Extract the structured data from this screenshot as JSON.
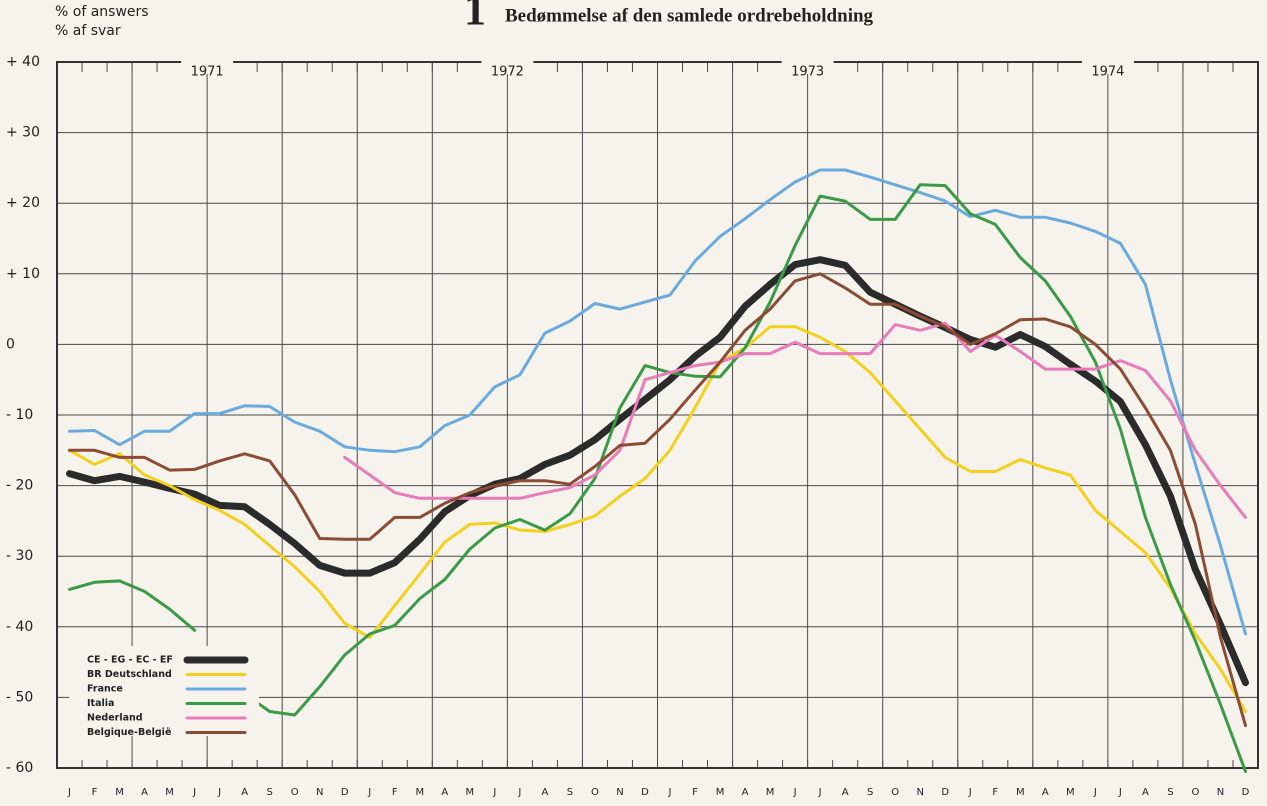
{
  "chart_data": {
    "type": "line",
    "figure_number": "1",
    "title": "Bedømmelse af den samlede ordrebeholdning",
    "ylabel": "% of answers",
    "ylabel_da": "% af svar",
    "years": [
      "1971",
      "1972",
      "1973",
      "1974"
    ],
    "categories": [
      "J",
      "F",
      "M",
      "A",
      "M",
      "J",
      "J",
      "A",
      "S",
      "O",
      "N",
      "D",
      "J",
      "F",
      "M",
      "A",
      "M",
      "J",
      "J",
      "A",
      "S",
      "O",
      "N",
      "D",
      "J",
      "F",
      "M",
      "A",
      "M",
      "J",
      "J",
      "A",
      "S",
      "O",
      "N",
      "D",
      "J",
      "F",
      "M",
      "A",
      "M",
      "J",
      "J",
      "A",
      "S",
      "O",
      "N",
      "D"
    ],
    "ylim": [
      -60,
      40
    ],
    "yticks": [
      {
        "value": 40,
        "label": "+ 40"
      },
      {
        "value": 30,
        "label": "+ 30"
      },
      {
        "value": 20,
        "label": "+ 20"
      },
      {
        "value": 10,
        "label": "+ 10"
      },
      0,
      {
        "value": -10,
        "label": "- 10"
      },
      {
        "value": -20,
        "label": "- 20"
      },
      {
        "value": -30,
        "label": "- 30"
      },
      {
        "value": -40,
        "label": "- 40"
      },
      {
        "value": -50,
        "label": "- 50"
      },
      {
        "value": -60,
        "label": "- 60"
      }
    ],
    "grid": true,
    "legend": "lower-left",
    "series": [
      {
        "name": "CE - EG - EC - EF",
        "color": "#2b2b2b",
        "width": 7,
        "values": [
          -18.3,
          -19.3,
          -18.7,
          -19.5,
          -20.4,
          -21.2,
          -22.8,
          -23,
          -25.5,
          -28.2,
          -31.3,
          -32.4,
          -32.4,
          -30.9,
          -27.6,
          -23.7,
          -21.4,
          -19.8,
          -19,
          -17,
          -15.7,
          -13.5,
          -10.6,
          -7.8,
          -5,
          -1.7,
          1,
          5.4,
          8.5,
          11.3,
          12,
          11.2,
          7.4,
          5.7,
          4,
          2.4,
          0.7,
          -0.4,
          1.4,
          -0.3,
          -2.8,
          -5.2,
          -8.1,
          -14.2,
          -21.5,
          -31.9,
          -39.7,
          -47.9
        ]
      },
      {
        "name": "BR Deutschland",
        "color": "#f4d01e",
        "width": 3,
        "values": [
          -15,
          -17,
          -15.5,
          -18.5,
          -20,
          -22,
          -23.5,
          -25.5,
          -28.5,
          -31.5,
          -35,
          -39.5,
          -41.5,
          -37,
          -32.5,
          -28,
          -25.5,
          -25.3,
          -26.3,
          -26.5,
          -25.5,
          -24.3,
          -21.5,
          -19,
          -15,
          -9,
          -2.5,
          -0.5,
          2.5,
          2.5,
          1,
          -1,
          -4,
          -8,
          -12,
          -16,
          -18,
          -18,
          -16.3,
          -17.5,
          -18.5,
          -23.5,
          -26.5,
          -29.5,
          -34.5,
          -41,
          -46,
          -52
        ]
      },
      {
        "name": "France",
        "color": "#6aaade",
        "width": 3,
        "values": [
          -12.3,
          -12.2,
          -14.2,
          -12.3,
          -12.3,
          -9.8,
          -9.8,
          -8.7,
          -8.8,
          -11,
          -12.3,
          -14.5,
          -15,
          -15.2,
          -14.5,
          -11.5,
          -10,
          -6,
          -4.3,
          1.6,
          3.3,
          5.8,
          5,
          6,
          7,
          11.8,
          15.3,
          17.8,
          20.5,
          23,
          24.7,
          24.7,
          23.7,
          22.6,
          21.5,
          20.3,
          18.1,
          19,
          18,
          18,
          17.2,
          16,
          14.3,
          8.5,
          -5,
          -17,
          -28.5,
          -41
        ]
      },
      {
        "name": "Italia",
        "color": "#3b9a45",
        "width": 3,
        "values": [
          -34.7,
          -33.7,
          -33.5,
          -35,
          -37.5,
          -40.5,
          null,
          -49.5,
          -52,
          -52.5,
          -48.5,
          -44,
          -41,
          -39.8,
          -36,
          -33.3,
          -29,
          -26,
          -24.8,
          -26.3,
          -24,
          -19,
          -9,
          -3,
          -4,
          -4.5,
          -4.6,
          -0.5,
          6,
          14,
          21,
          20.3,
          17.7,
          17.7,
          22.6,
          22.5,
          18.5,
          17,
          12.3,
          9,
          4,
          -2.5,
          -12,
          -24.5,
          -34,
          -42,
          -51,
          -60.5
        ]
      },
      {
        "name": "Nederland",
        "color": "#e97bba",
        "width": 3,
        "values": [
          null,
          null,
          null,
          null,
          null,
          null,
          null,
          null,
          null,
          null,
          null,
          -16,
          -18.5,
          -21,
          -21.8,
          -21.8,
          -21.8,
          -21.8,
          -21.8,
          -21,
          -20.3,
          -18.5,
          -15,
          -5,
          -4,
          -3,
          -2.5,
          -1.3,
          -1.3,
          0.3,
          -1.3,
          -1.3,
          -1.3,
          2.8,
          2,
          3,
          -1,
          1.3,
          -1,
          -3.5,
          -3.5,
          -3.5,
          -2.3,
          -3.7,
          -8,
          -15,
          -20,
          -24.5
        ]
      },
      {
        "name": "Belgique-België",
        "color": "#8c4b33",
        "width": 3,
        "values": [
          -15,
          -15,
          -16,
          -16,
          -17.8,
          -17.7,
          -16.5,
          -15.5,
          -16.5,
          -21.3,
          -27.5,
          -27.6,
          -27.6,
          -24.5,
          -24.5,
          -22.5,
          -21,
          -20,
          -19.3,
          -19.3,
          -19.8,
          -17.3,
          -14.3,
          -14,
          -10.6,
          -6.5,
          -2.5,
          2,
          5,
          9,
          10,
          8,
          5.7,
          5.7,
          4,
          2.5,
          0,
          1.5,
          3.5,
          3.6,
          2.5,
          0,
          -3.5,
          -9,
          -15,
          -25.5,
          -41.5,
          -54
        ]
      }
    ]
  }
}
